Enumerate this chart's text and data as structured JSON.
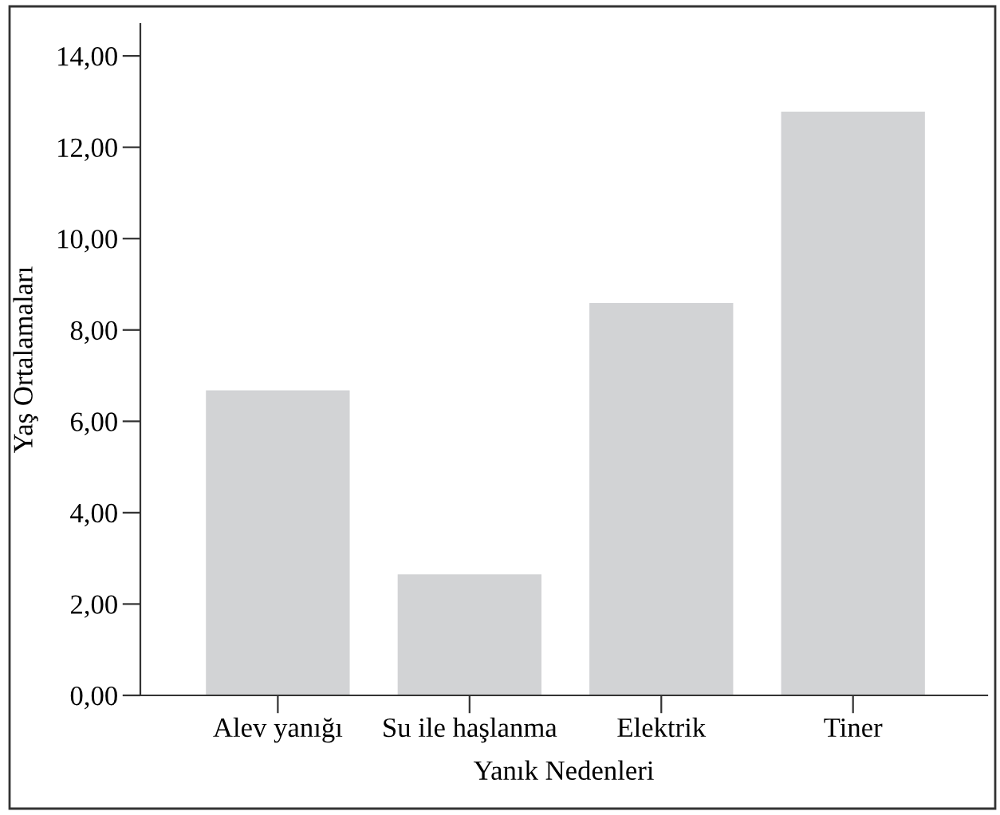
{
  "chart_data": {
    "type": "bar",
    "xlabel": "Yanık Nedenleri",
    "ylabel": "Yaş Ortalamaları",
    "categories": [
      "Alev yanığı",
      "Su ile haşlanma",
      "Elektrik",
      "Tiner"
    ],
    "values": [
      6.68,
      2.65,
      8.59,
      12.78
    ],
    "color": "#d2d3d5",
    "ylim": [
      0,
      14.7
    ],
    "yticks": [
      {
        "value": 0,
        "label": "0,00"
      },
      {
        "value": 2,
        "label": "2,00"
      },
      {
        "value": 4,
        "label": "4,00"
      },
      {
        "value": 6,
        "label": "6,00"
      },
      {
        "value": 8,
        "label": "8,00"
      },
      {
        "value": 10,
        "label": "10,00"
      },
      {
        "value": 12,
        "label": "12,00"
      },
      {
        "value": 14,
        "label": "14,00"
      }
    ],
    "grid": false,
    "legend": false
  }
}
